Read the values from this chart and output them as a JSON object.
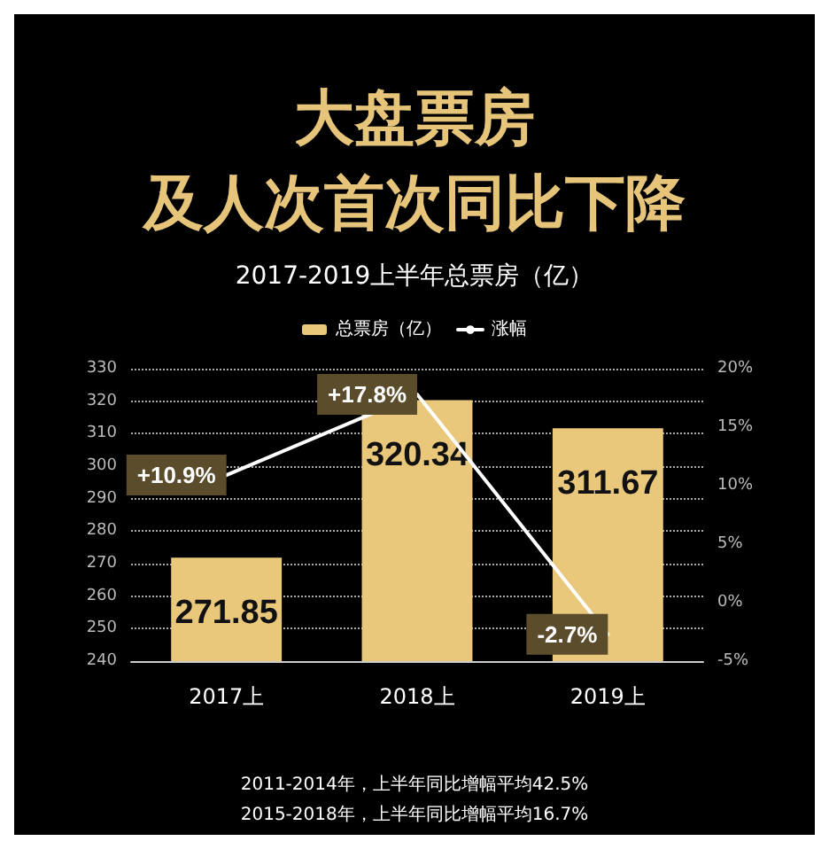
{
  "chart_data": {
    "type": "bar",
    "title": "大盘票房及人次首次同比下降",
    "subtitle": "2017-2019上半年总票房（亿）",
    "categories": [
      "2017上",
      "2018上",
      "2019上"
    ],
    "series": [
      {
        "name": "总票房（亿）",
        "color": "#e9c77b",
        "values": [
          271.85,
          320.34,
          311.67
        ]
      },
      {
        "name": "涨幅",
        "type": "line",
        "axis": "y2",
        "color": "#ffffff",
        "values": [
          10.9,
          17.8,
          -2.7
        ],
        "value_labels": [
          "+10.9%",
          "+17.8%",
          "-2.7%"
        ]
      }
    ],
    "data_labels": true,
    "ylim": [
      240,
      330
    ],
    "yticks": [
      240,
      250,
      260,
      270,
      280,
      290,
      300,
      310,
      320,
      330
    ],
    "y2lim": [
      -5,
      20
    ],
    "y2ticks": [
      {
        "value": -5,
        "label": "-5%"
      },
      {
        "value": 0,
        "label": "0%"
      },
      {
        "value": 5,
        "label": "5%"
      },
      {
        "value": 10,
        "label": "10%"
      },
      {
        "value": 15,
        "label": "15%"
      },
      {
        "value": 20,
        "label": "20%"
      }
    ],
    "grid": "y",
    "legend": "top",
    "marker": "none",
    "line_style": "solid",
    "annotations": [
      "2011-2014年，上半年同比增幅平均42.5%",
      "2015-2018年，上半年同比增幅平均16.7%"
    ]
  }
}
